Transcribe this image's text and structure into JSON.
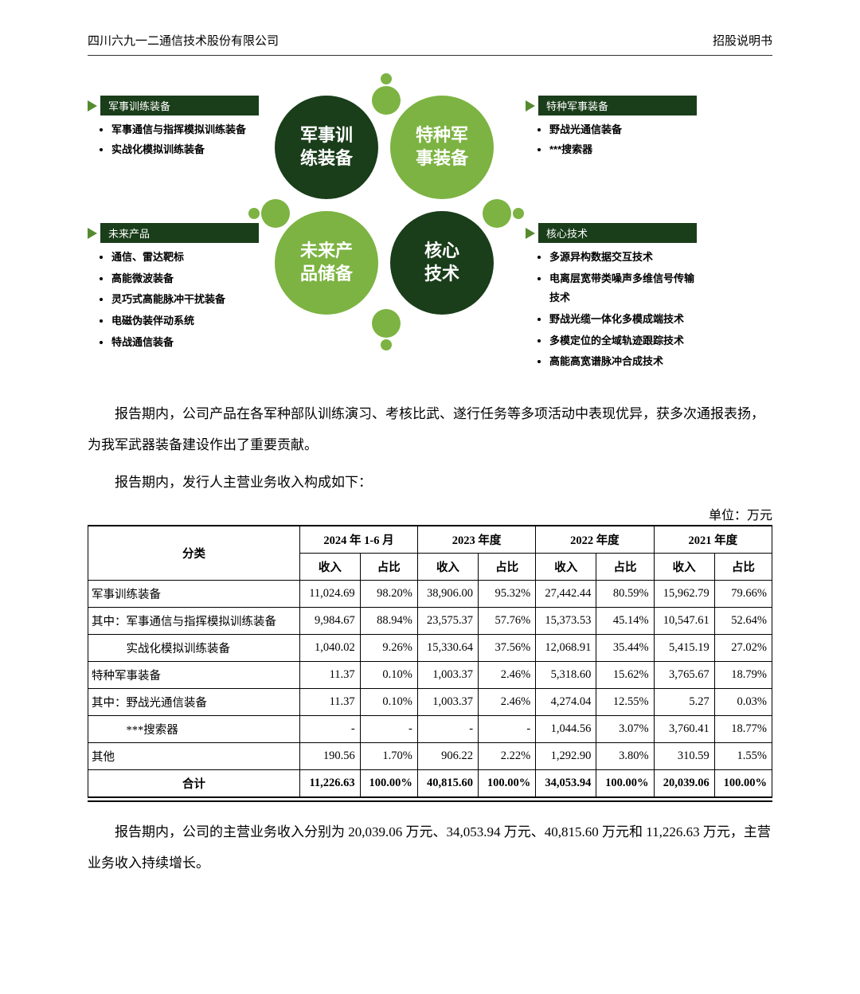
{
  "header": {
    "left": "四川六九一二通信技术股份有限公司",
    "right": "招股说明书"
  },
  "diagram": {
    "circles": {
      "c1": "军事训\n练装备",
      "c2": "特种军\n事装备",
      "c3": "未来产\n品储备",
      "c4": "核心\n技术"
    },
    "box_tl": {
      "title": "军事训练装备",
      "items": [
        "军事通信与指挥模拟训练装备",
        "实战化模拟训练装备"
      ]
    },
    "box_tr": {
      "title": "特种军事装备",
      "items": [
        "野战光通信装备",
        "***搜索器"
      ]
    },
    "box_bl": {
      "title": "未来产品",
      "items": [
        "通信、雷达靶标",
        "高能微波装备",
        "灵巧式高能脉冲干扰装备",
        "电磁伪装伴动系统",
        "特战通信装备"
      ]
    },
    "box_br": {
      "title": "核心技术",
      "items": [
        "多源异构数据交互技术",
        "电离层宽带类噪声多维信号传输技术",
        "野战光缆一体化多模成端技术",
        "多模定位的全域轨迹跟踪技术",
        "高能高宽谱脉冲合成技术"
      ]
    },
    "colors": {
      "dark": "#1a3d1a",
      "light": "#7cb342",
      "arrow": "#558b2f"
    }
  },
  "para1": "报告期内，公司产品在各军种部队训练演习、考核比武、遂行任务等多项活动中表现优异，获多次通报表扬，为我军武器装备建设作出了重要贡献。",
  "para2": "报告期内，发行人主营业务收入构成如下：",
  "unit": "单位：万元",
  "table": {
    "head_cat": "分类",
    "periods": [
      "2024 年 1-6 月",
      "2023 年度",
      "2022 年度",
      "2021 年度"
    ],
    "sub": [
      "收入",
      "占比"
    ],
    "rows": [
      {
        "label": "军事训练装备",
        "align": "left",
        "cells": [
          "11,024.69",
          "98.20%",
          "38,906.00",
          "95.32%",
          "27,442.44",
          "80.59%",
          "15,962.79",
          "79.66%"
        ]
      },
      {
        "label": "其中：军事通信与指挥模拟训练装备",
        "align": "left",
        "cells": [
          "9,984.67",
          "88.94%",
          "23,575.37",
          "57.76%",
          "15,373.53",
          "45.14%",
          "10,547.61",
          "52.64%"
        ]
      },
      {
        "label": "　　　实战化模拟训练装备",
        "align": "left",
        "cells": [
          "1,040.02",
          "9.26%",
          "15,330.64",
          "37.56%",
          "12,068.91",
          "35.44%",
          "5,415.19",
          "27.02%"
        ]
      },
      {
        "label": "特种军事装备",
        "align": "left",
        "cells": [
          "11.37",
          "0.10%",
          "1,003.37",
          "2.46%",
          "5,318.60",
          "15.62%",
          "3,765.67",
          "18.79%"
        ]
      },
      {
        "label": "其中：野战光通信装备",
        "align": "left",
        "cells": [
          "11.37",
          "0.10%",
          "1,003.37",
          "2.46%",
          "4,274.04",
          "12.55%",
          "5.27",
          "0.03%"
        ]
      },
      {
        "label": "　　　***搜索器",
        "align": "left",
        "cells": [
          "-",
          "-",
          "-",
          "-",
          "1,044.56",
          "3.07%",
          "3,760.41",
          "18.77%"
        ]
      },
      {
        "label": "其他",
        "align": "left",
        "cells": [
          "190.56",
          "1.70%",
          "906.22",
          "2.22%",
          "1,292.90",
          "3.80%",
          "310.59",
          "1.55%"
        ]
      }
    ],
    "total": {
      "label": "合计",
      "cells": [
        "11,226.63",
        "100.00%",
        "40,815.60",
        "100.00%",
        "34,053.94",
        "100.00%",
        "20,039.06",
        "100.00%"
      ]
    }
  },
  "para3": "报告期内，公司的主营业务收入分别为 20,039.06 万元、34,053.94 万元、40,815.60 万元和 11,226.63 万元，主营业务收入持续增长。"
}
